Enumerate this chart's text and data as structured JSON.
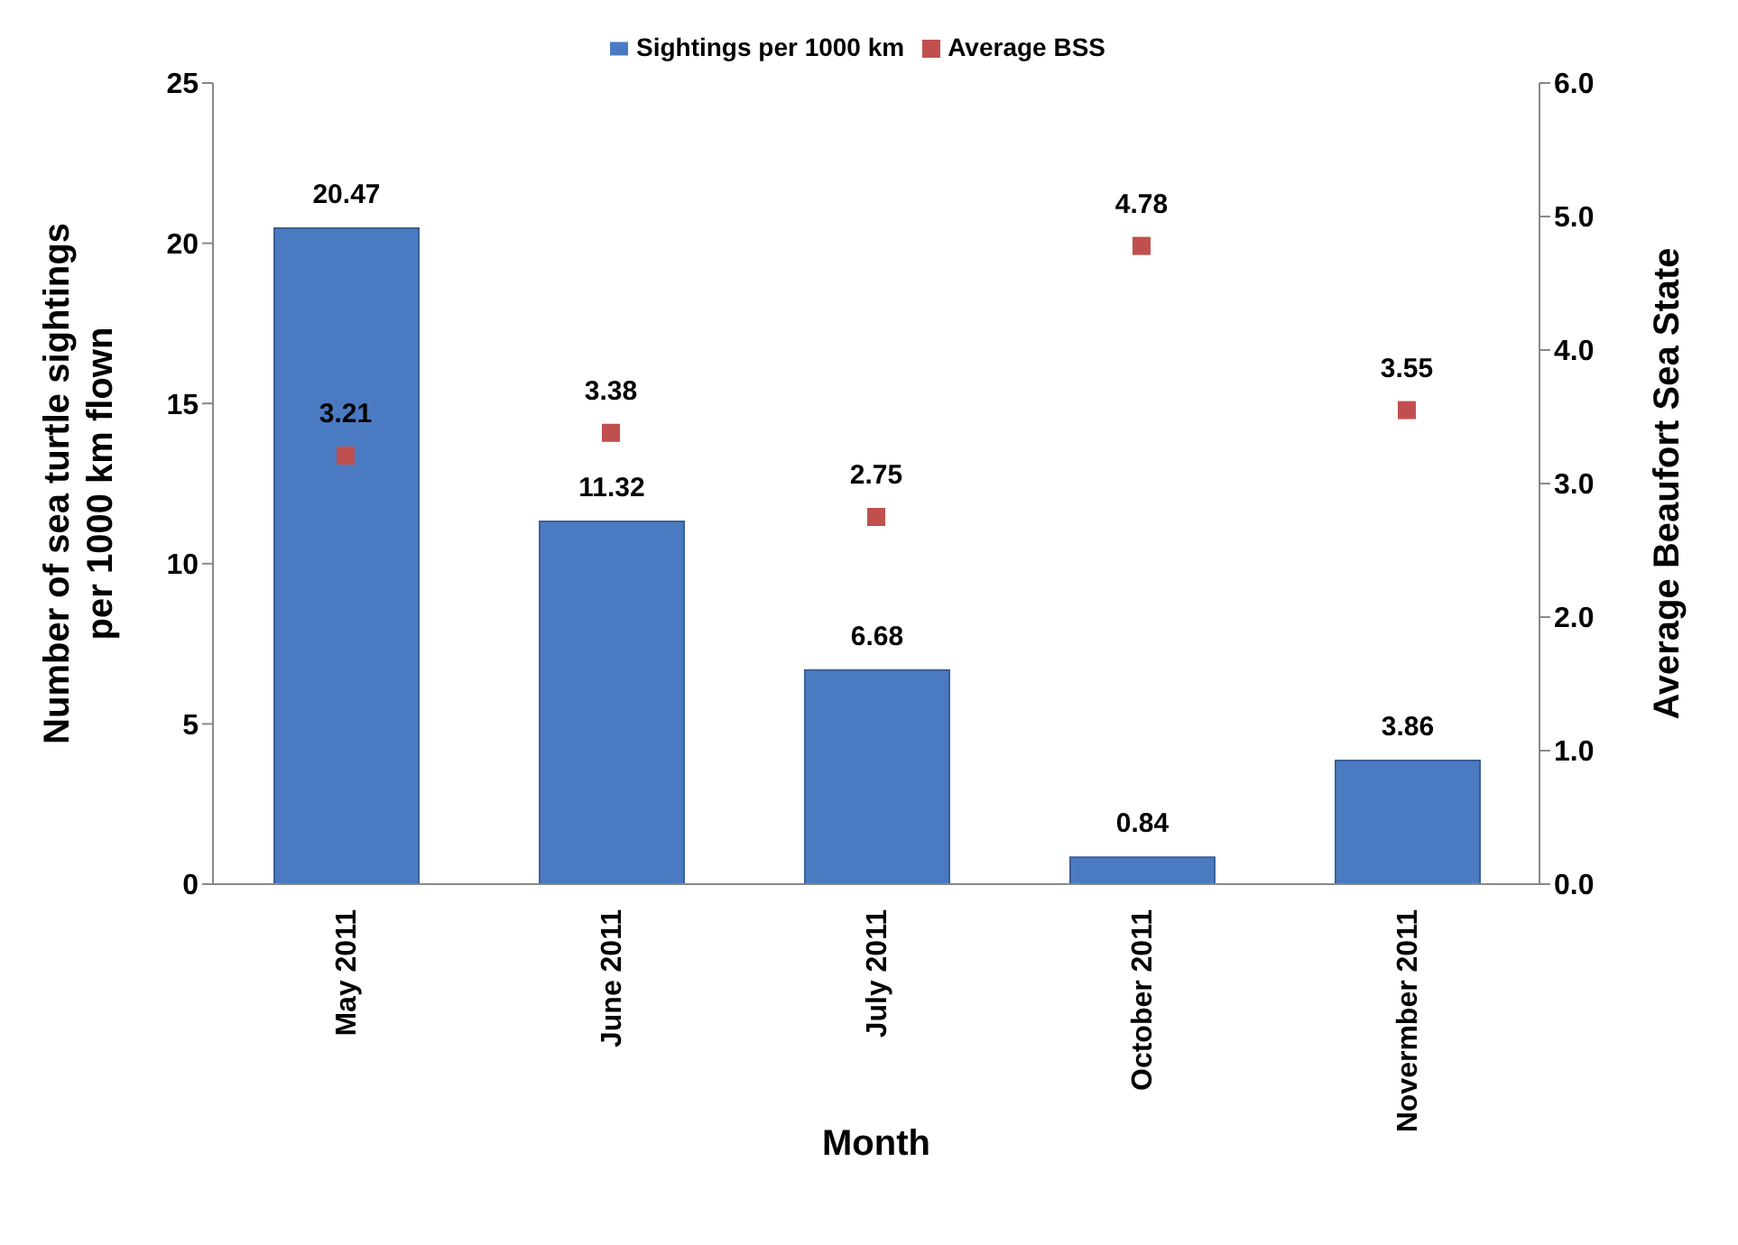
{
  "chart_data": {
    "type": "bar",
    "categories": [
      "May 2011",
      "June 2011",
      "July 2011",
      "October 2011",
      "Novermber 2011"
    ],
    "series": [
      {
        "name": "Sightings per 1000 km",
        "color": "#4a7bc2",
        "values": [
          20.47,
          11.32,
          6.68,
          0.84,
          3.86
        ]
      },
      {
        "name": "Average BSS",
        "type": "scatter",
        "axis": "y2",
        "color": "#c0504d",
        "values": [
          3.21,
          3.38,
          2.75,
          4.78,
          3.55
        ]
      }
    ],
    "xlabel": "Month",
    "ylabel": "Number of sea turtle sightings per 1000 km flown",
    "y2label": "Average Beaufort Sea State",
    "ylim": [
      0,
      25
    ],
    "yticks": [
      0,
      5,
      10,
      15,
      20,
      25
    ],
    "y2lim": [
      0,
      6
    ],
    "y2ticks": [
      {
        "value": 0,
        "label": "0.0"
      },
      {
        "value": 1,
        "label": "1.0"
      },
      {
        "value": 2,
        "label": "2.0"
      },
      {
        "value": 3,
        "label": "3.0"
      },
      {
        "value": 4,
        "label": "4.0"
      },
      {
        "value": 5,
        "label": "5.0"
      },
      {
        "value": 6,
        "label": "6.0"
      }
    ],
    "data_labels": true,
    "legend": "top",
    "marker": "square"
  }
}
